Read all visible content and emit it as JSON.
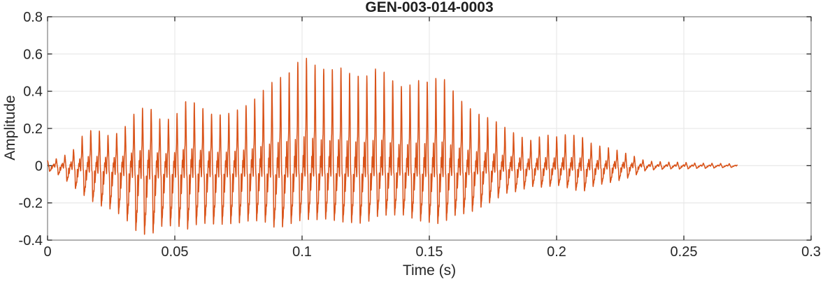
{
  "window": {
    "background": "#ffffff"
  },
  "chart_data": {
    "type": "line",
    "title": "GEN-003-014-0003",
    "xlabel": "Time (s)",
    "ylabel": "Amplitude",
    "xlim": [
      0,
      0.3
    ],
    "ylim": [
      -0.4,
      0.8
    ],
    "xticks": [
      0,
      0.05,
      0.1,
      0.15,
      0.2,
      0.25,
      0.3
    ],
    "xtick_labels": [
      "0",
      "0.05",
      "0.1",
      "0.15",
      "0.2",
      "0.25",
      "0.3"
    ],
    "yticks": [
      -0.4,
      -0.2,
      0,
      0.2,
      0.4,
      0.6,
      0.8
    ],
    "ytick_labels": [
      "-0.4",
      "-0.2",
      "0",
      "0.2",
      "0.4",
      "0.6",
      "0.8"
    ],
    "grid": true,
    "series_color": "#D95319",
    "axis_box_color": "#898989",
    "grid_color": "#E6E6E6",
    "tick_color": "#262626",
    "text_color": "#262626",
    "signal": {
      "kind": "audio-waveform",
      "t_start": 0,
      "t_end": 0.271,
      "pitch_hz": 295,
      "envelope_step_s": 0.005,
      "upper_envelope": [
        0.03,
        0.05,
        0.09,
        0.2,
        0.21,
        0.18,
        0.22,
        0.3,
        0.32,
        0.26,
        0.3,
        0.39,
        0.33,
        0.3,
        0.33,
        0.35,
        0.36,
        0.42,
        0.5,
        0.56,
        0.63,
        0.55,
        0.53,
        0.6,
        0.58,
        0.53,
        0.56,
        0.51,
        0.48,
        0.51,
        0.46,
        0.48,
        0.42,
        0.36,
        0.3,
        0.26,
        0.22,
        0.19,
        0.16,
        0.18,
        0.16,
        0.18,
        0.17,
        0.12,
        0.1,
        0.08,
        0.06,
        0.03,
        0.025,
        0.02,
        0.02,
        0.015,
        0.015,
        0.012,
        0.01
      ],
      "lower_envelope": [
        -0.03,
        -0.06,
        -0.12,
        -0.18,
        -0.24,
        -0.27,
        -0.3,
        -0.36,
        -0.38,
        -0.35,
        -0.38,
        -0.4,
        -0.34,
        -0.33,
        -0.33,
        -0.34,
        -0.33,
        -0.32,
        -0.35,
        -0.33,
        -0.33,
        -0.35,
        -0.33,
        -0.32,
        -0.31,
        -0.32,
        -0.3,
        -0.3,
        -0.29,
        -0.31,
        -0.33,
        -0.36,
        -0.31,
        -0.28,
        -0.23,
        -0.19,
        -0.16,
        -0.16,
        -0.13,
        -0.13,
        -0.11,
        -0.13,
        -0.16,
        -0.12,
        -0.1,
        -0.08,
        -0.06,
        -0.03,
        -0.025,
        -0.02,
        -0.02,
        -0.015,
        -0.015,
        -0.012,
        -0.01
      ]
    }
  }
}
